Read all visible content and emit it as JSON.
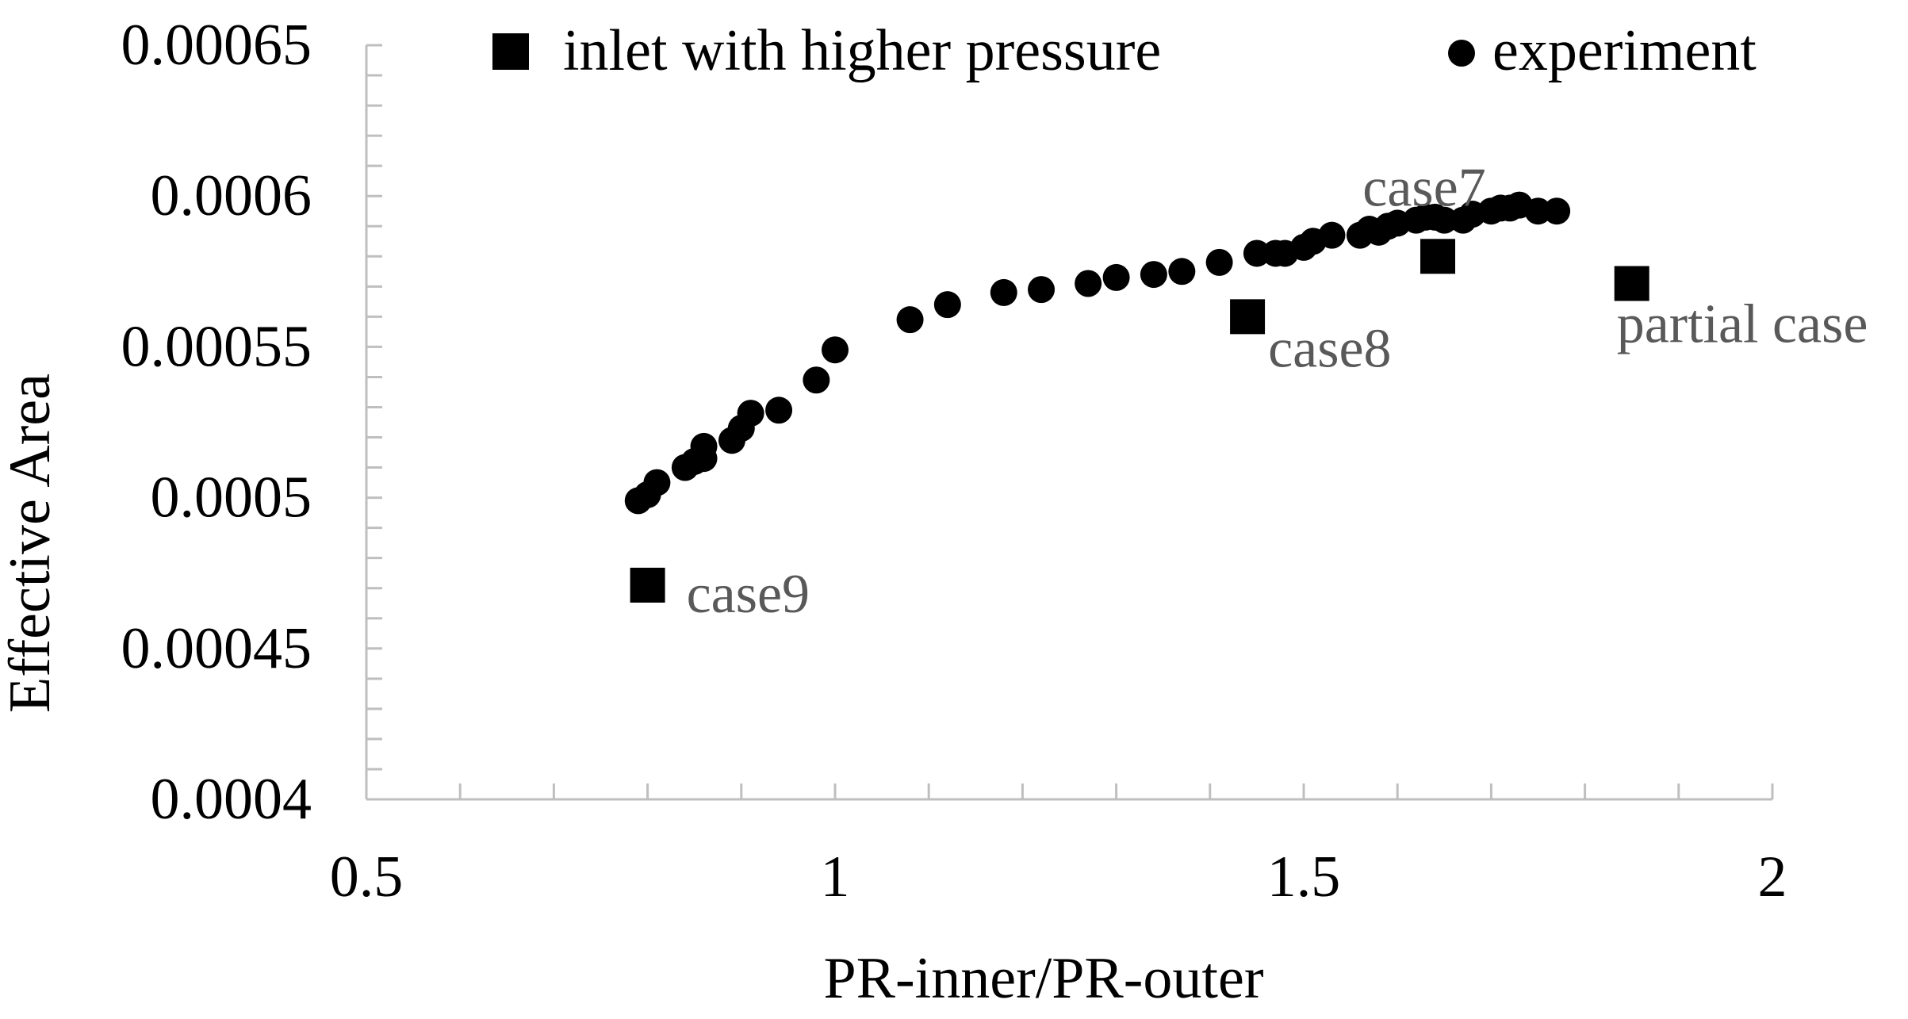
{
  "chart_data": {
    "type": "scatter",
    "xlabel": "PR-inner/PR-outer",
    "ylabel": "Effective Area",
    "xlim": [
      0.5,
      2
    ],
    "ylim": [
      0.0004,
      0.00065
    ],
    "x_ticks": [
      {
        "value": 0.5,
        "label": "0.5"
      },
      {
        "value": 1,
        "label": "1"
      },
      {
        "value": 1.5,
        "label": "1.5"
      },
      {
        "value": 2,
        "label": "2"
      }
    ],
    "y_ticks": [
      {
        "value": 0.0004,
        "label": "0.0004"
      },
      {
        "value": 0.00045,
        "label": "0.00045"
      },
      {
        "value": 0.0005,
        "label": "0.0005"
      },
      {
        "value": 0.00055,
        "label": "0.00055"
      },
      {
        "value": 0.0006,
        "label": "0.0006"
      },
      {
        "value": 0.00065,
        "label": "0.00065"
      }
    ],
    "x_minor_step": 0.1,
    "y_minor_step": 1e-05,
    "grid": false,
    "legend_position": "top",
    "colors": {
      "axis": "#bfbfbf",
      "marker": "#000000",
      "annotation": "#595959"
    },
    "series": [
      {
        "name": "inlet with higher pressure",
        "marker": "square",
        "points": [
          {
            "x": 1.643,
            "y": 0.00058,
            "label": "case7",
            "label_pos": "above-left"
          },
          {
            "x": 1.44,
            "y": 0.00056,
            "label": "case8",
            "label_pos": "below-right"
          },
          {
            "x": 0.8,
            "y": 0.000471,
            "label": "case9",
            "label_pos": "right"
          },
          {
            "x": 1.85,
            "y": 0.000571,
            "label": "partial case",
            "label_pos": "below"
          }
        ]
      },
      {
        "name": "experiment",
        "marker": "circle",
        "points": [
          {
            "x": 0.79,
            "y": 0.000499
          },
          {
            "x": 0.8,
            "y": 0.000501
          },
          {
            "x": 0.81,
            "y": 0.000505
          },
          {
            "x": 0.84,
            "y": 0.00051
          },
          {
            "x": 0.85,
            "y": 0.000512
          },
          {
            "x": 0.86,
            "y": 0.000513
          },
          {
            "x": 0.86,
            "y": 0.000517
          },
          {
            "x": 0.89,
            "y": 0.000519
          },
          {
            "x": 0.9,
            "y": 0.000523
          },
          {
            "x": 0.91,
            "y": 0.000528
          },
          {
            "x": 0.94,
            "y": 0.000529
          },
          {
            "x": 0.98,
            "y": 0.000539
          },
          {
            "x": 1.0,
            "y": 0.000549
          },
          {
            "x": 1.08,
            "y": 0.000559
          },
          {
            "x": 1.12,
            "y": 0.000564
          },
          {
            "x": 1.18,
            "y": 0.000568
          },
          {
            "x": 1.22,
            "y": 0.000569
          },
          {
            "x": 1.27,
            "y": 0.000571
          },
          {
            "x": 1.3,
            "y": 0.000573
          },
          {
            "x": 1.34,
            "y": 0.000574
          },
          {
            "x": 1.37,
            "y": 0.000575
          },
          {
            "x": 1.41,
            "y": 0.000578
          },
          {
            "x": 1.45,
            "y": 0.000581
          },
          {
            "x": 1.47,
            "y": 0.000581
          },
          {
            "x": 1.48,
            "y": 0.000581
          },
          {
            "x": 1.5,
            "y": 0.000583
          },
          {
            "x": 1.51,
            "y": 0.000585
          },
          {
            "x": 1.53,
            "y": 0.000587
          },
          {
            "x": 1.56,
            "y": 0.000587
          },
          {
            "x": 1.57,
            "y": 0.000589
          },
          {
            "x": 1.58,
            "y": 0.000588
          },
          {
            "x": 1.59,
            "y": 0.00059
          },
          {
            "x": 1.6,
            "y": 0.000591
          },
          {
            "x": 1.62,
            "y": 0.000592
          },
          {
            "x": 1.63,
            "y": 0.000593
          },
          {
            "x": 1.64,
            "y": 0.000593
          },
          {
            "x": 1.65,
            "y": 0.000592
          },
          {
            "x": 1.67,
            "y": 0.000592
          },
          {
            "x": 1.68,
            "y": 0.000594
          },
          {
            "x": 1.7,
            "y": 0.000595
          },
          {
            "x": 1.71,
            "y": 0.000596
          },
          {
            "x": 1.72,
            "y": 0.000596
          },
          {
            "x": 1.73,
            "y": 0.000597
          },
          {
            "x": 1.75,
            "y": 0.000595
          },
          {
            "x": 1.77,
            "y": 0.000595
          }
        ]
      }
    ]
  }
}
